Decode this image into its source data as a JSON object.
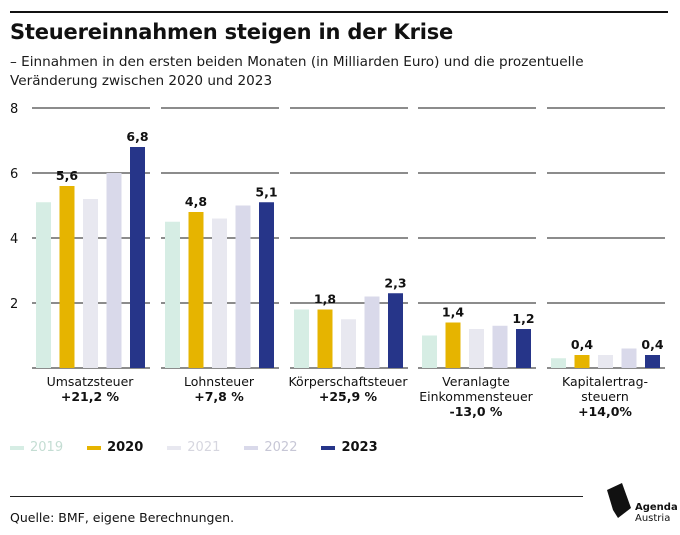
{
  "header": {
    "title": "Steuereinnahmen steigen in der Krise",
    "subtitle": "– Einnahmen in den ersten beiden Monaten (in Milliarden Euro) und die prozentuelle Veränderung zwischen 2020 und 2023"
  },
  "chart_data": {
    "type": "bar",
    "title": "Steuereinnahmen steigen in der Krise",
    "ylim": [
      0,
      8
    ],
    "yticks": [
      2,
      4,
      6,
      8
    ],
    "grid": true,
    "legend_position": "bottom-left",
    "categories": [
      {
        "name": "Umsatzsteuer",
        "change": "+21,2 %"
      },
      {
        "name": "Lohnsteuer",
        "change": "+7,8 %"
      },
      {
        "name": "Körperschaftsteuer",
        "change": "+25,9 %"
      },
      {
        "name": "Veranlagte Einkommensteuer",
        "change": "-13,0 %"
      },
      {
        "name": "Kapitalertrag-steuern",
        "change": "+14,0%"
      }
    ],
    "category_label_lines": [
      [
        "Umsatzsteuer",
        "+21,2 %"
      ],
      [
        "Lohnsteuer",
        "+7,8 %"
      ],
      [
        "Körperschaftsteuer",
        "+25,9 %"
      ],
      [
        "Veranlagte",
        "Einkommensteuer",
        "-13,0 %"
      ],
      [
        "Kapitalertrag-",
        "steuern",
        "+14,0%"
      ]
    ],
    "series": [
      {
        "name": "2019",
        "color": "#d6ede4",
        "values": [
          5.1,
          4.5,
          1.8,
          1.0,
          0.3
        ],
        "labels": [
          "",
          "",
          "",
          "",
          ""
        ]
      },
      {
        "name": "2020",
        "color": "#e6b400",
        "values": [
          5.6,
          4.8,
          1.8,
          1.4,
          0.4
        ],
        "labels": [
          "5,6",
          "4,8",
          "1,8",
          "1,4",
          "0,4"
        ]
      },
      {
        "name": "2021",
        "color": "#e8e8f0",
        "values": [
          5.2,
          4.6,
          1.5,
          1.2,
          0.4
        ],
        "labels": [
          "",
          "",
          "",
          "",
          ""
        ]
      },
      {
        "name": "2022",
        "color": "#d9d9ea",
        "values": [
          6.0,
          5.0,
          2.2,
          1.3,
          0.6
        ],
        "labels": [
          "",
          "",
          "",
          "",
          ""
        ]
      },
      {
        "name": "2023",
        "color": "#263589",
        "values": [
          6.8,
          5.1,
          2.3,
          1.2,
          0.4
        ],
        "labels": [
          "6,8",
          "5,1",
          "2,3",
          "1,2",
          "0,4"
        ]
      }
    ]
  },
  "legend": {
    "items": [
      {
        "label": "2019",
        "color": "#d6ede4",
        "text_color": "#c4ddd3"
      },
      {
        "label": "2020",
        "color": "#e6b400",
        "text_color": "#111111"
      },
      {
        "label": "2021",
        "color": "#e8e8f0",
        "text_color": "#d6d6df"
      },
      {
        "label": "2022",
        "color": "#d9d9ea",
        "text_color": "#c7c7d6"
      },
      {
        "label": "2023",
        "color": "#263589",
        "text_color": "#111111"
      }
    ]
  },
  "footer": {
    "source": "Quelle: BMF, eigene Berechnungen.",
    "logo_line1": "Agenda",
    "logo_line2": "Austria"
  }
}
